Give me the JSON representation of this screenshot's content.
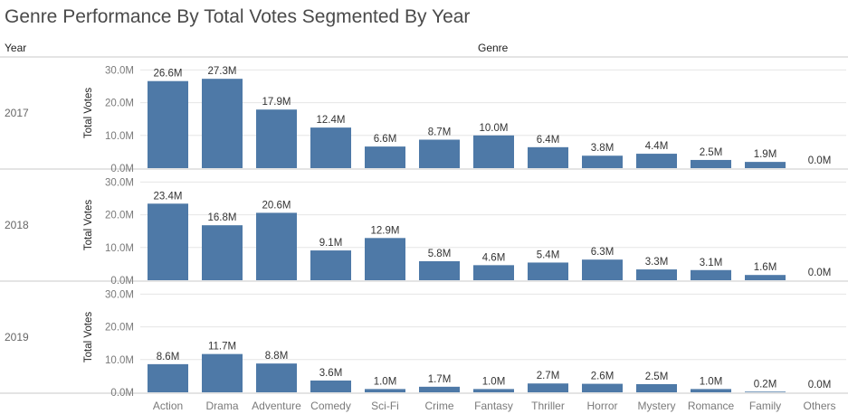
{
  "title": "Genre Performance By Total Votes Segmented By Year",
  "row_header": "Year",
  "column_header": "Genre",
  "colors": {
    "bar": "#4e79a7",
    "grid": "#e6e6e6",
    "divider": "#c8c8c8"
  },
  "chart_data": {
    "type": "bar",
    "title": "Genre Performance By Total Votes Segmented By Year",
    "xlabel": "Genre",
    "ylabel": "Total Votes",
    "categories": [
      "Action",
      "Drama",
      "Adventure",
      "Comedy",
      "Sci-Fi",
      "Crime",
      "Fantasy",
      "Thriller",
      "Horror",
      "Mystery",
      "Romance",
      "Family",
      "Others"
    ],
    "y_ticks": [
      "0.0M",
      "10.0M",
      "20.0M",
      "30.0M"
    ],
    "ylim": [
      0,
      30
    ],
    "unit": "M",
    "series": [
      {
        "name": "2017",
        "values": [
          26.6,
          27.3,
          17.9,
          12.4,
          6.6,
          8.7,
          10.0,
          6.4,
          3.8,
          4.4,
          2.5,
          1.9,
          0.0
        ],
        "labels": [
          "26.6M",
          "27.3M",
          "17.9M",
          "12.4M",
          "6.6M",
          "8.7M",
          "10.0M",
          "6.4M",
          "3.8M",
          "4.4M",
          "2.5M",
          "1.9M",
          "0.0M"
        ]
      },
      {
        "name": "2018",
        "values": [
          23.4,
          16.8,
          20.6,
          9.1,
          12.9,
          5.8,
          4.6,
          5.4,
          6.3,
          3.3,
          3.1,
          1.6,
          0.0
        ],
        "labels": [
          "23.4M",
          "16.8M",
          "20.6M",
          "9.1M",
          "12.9M",
          "5.8M",
          "4.6M",
          "5.4M",
          "6.3M",
          "3.3M",
          "3.1M",
          "1.6M",
          "0.0M"
        ]
      },
      {
        "name": "2019",
        "values": [
          8.6,
          11.7,
          8.8,
          3.6,
          1.0,
          1.7,
          1.0,
          2.7,
          2.6,
          2.5,
          1.0,
          0.2,
          0.0
        ],
        "labels": [
          "8.6M",
          "11.7M",
          "8.8M",
          "3.6M",
          "1.0M",
          "1.7M",
          "1.0M",
          "2.7M",
          "2.6M",
          "2.5M",
          "1.0M",
          "0.2M",
          "0.0M"
        ]
      }
    ]
  }
}
